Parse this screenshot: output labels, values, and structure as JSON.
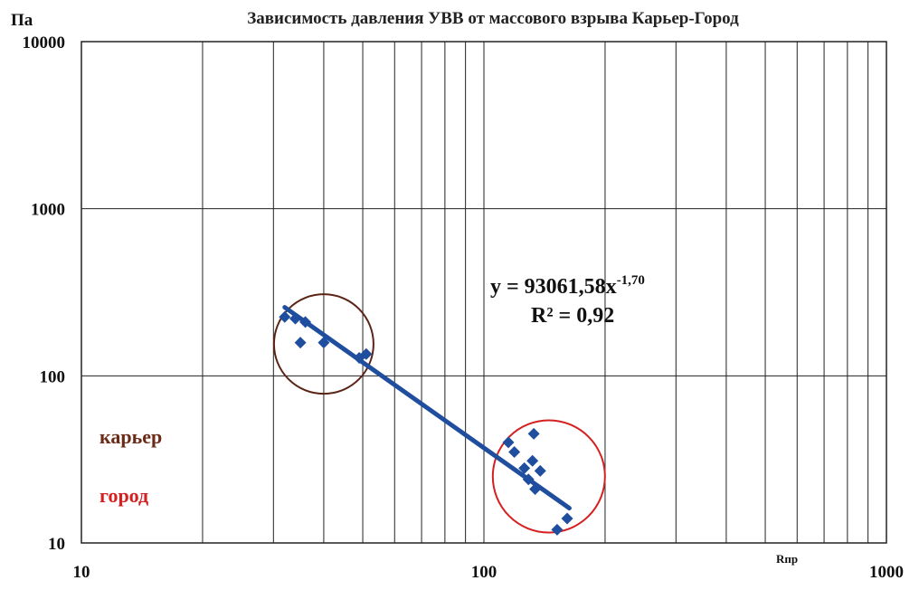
{
  "chart_data": {
    "type": "scatter",
    "title": "Зависимость давления УВВ от массового взрыва   Карьер-Город",
    "ylabel": "Па",
    "xlabel": "Rпр",
    "x_scale": "log",
    "y_scale": "log",
    "xlim": [
      10,
      1000
    ],
    "ylim": [
      10,
      10000
    ],
    "x_ticks": [
      "10",
      "100",
      "1000"
    ],
    "y_ticks": [
      "10",
      "100",
      "1000",
      "10000"
    ],
    "grid": true,
    "marker_color": "#1f4e9e",
    "trend_color": "#1f4e9e",
    "series": [
      {
        "points": [
          [
            32,
            225
          ],
          [
            34,
            220
          ],
          [
            36,
            210
          ],
          [
            35,
            158
          ],
          [
            40,
            158
          ],
          [
            49,
            128
          ],
          [
            51,
            135
          ],
          [
            115,
            40
          ],
          [
            119,
            35
          ],
          [
            126,
            28
          ],
          [
            132,
            31
          ],
          [
            133,
            45
          ],
          [
            129,
            24
          ],
          [
            134,
            21
          ],
          [
            138,
            27
          ],
          [
            152,
            12
          ],
          [
            161,
            14
          ]
        ]
      }
    ],
    "trendline": {
      "coefficient": 93061.58,
      "exponent": -1.7,
      "x_range": [
        32,
        163
      ]
    },
    "annotations": {
      "equation_prefix": "y = 93061,58x",
      "equation_exponent": "-1,70",
      "r2": "R² = 0,92"
    },
    "groups": [
      {
        "label": "карьер",
        "color": "#6b2a16",
        "circle_center": [
          40,
          155
        ],
        "circle_color": "#5a2416"
      },
      {
        "label": "город",
        "color": "#d42020",
        "circle_center": [
          145,
          25
        ],
        "circle_color": "#d42020"
      }
    ]
  }
}
